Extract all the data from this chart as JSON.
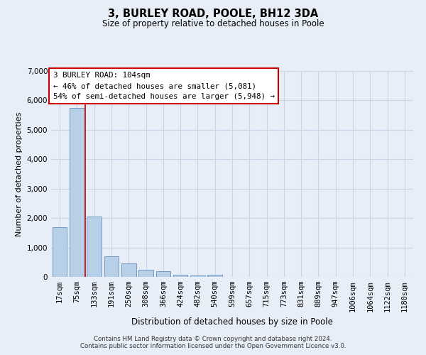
{
  "title": "3, BURLEY ROAD, POOLE, BH12 3DA",
  "subtitle": "Size of property relative to detached houses in Poole",
  "xlabel": "Distribution of detached houses by size in Poole",
  "ylabel": "Number of detached properties",
  "categories": [
    "17sqm",
    "75sqm",
    "133sqm",
    "191sqm",
    "250sqm",
    "308sqm",
    "366sqm",
    "424sqm",
    "482sqm",
    "540sqm",
    "599sqm",
    "657sqm",
    "715sqm",
    "773sqm",
    "831sqm",
    "889sqm",
    "947sqm",
    "1006sqm",
    "1064sqm",
    "1122sqm",
    "1180sqm"
  ],
  "bar_heights": [
    1700,
    5750,
    2050,
    700,
    450,
    250,
    200,
    80,
    50,
    80,
    10,
    10,
    10,
    0,
    0,
    0,
    0,
    0,
    0,
    0,
    0
  ],
  "bar_color": "#b8cfe8",
  "bar_edge_color": "#6090c0",
  "grid_color": "#c8d4e8",
  "background_color": "#e8eef8",
  "vline_color": "#cc0000",
  "vline_pos": 1.48,
  "annotation_title": "3 BURLEY ROAD: 104sqm",
  "annotation_line1": "← 46% of detached houses are smaller (5,081)",
  "annotation_line2": "54% of semi-detached houses are larger (5,948) →",
  "annotation_box_facecolor": "#ffffff",
  "annotation_box_edgecolor": "#cc0000",
  "ylim": [
    0,
    7000
  ],
  "yticks": [
    0,
    1000,
    2000,
    3000,
    4000,
    5000,
    6000,
    7000
  ],
  "footer_line1": "Contains HM Land Registry data © Crown copyright and database right 2024.",
  "footer_line2": "Contains public sector information licensed under the Open Government Licence v3.0."
}
